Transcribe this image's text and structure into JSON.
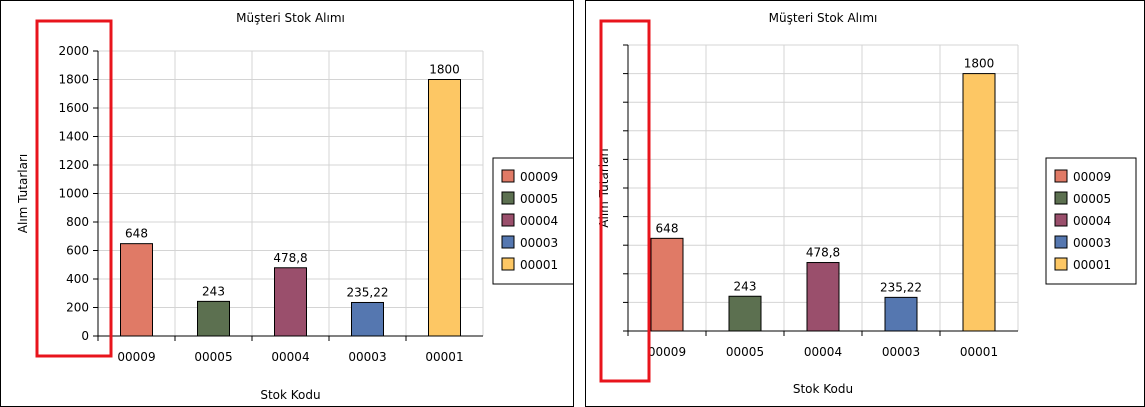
{
  "highlight_color": "#e8141c",
  "chart_data": [
    {
      "type": "bar",
      "title": "Müşteri Stok Alımı",
      "xlabel": "Stok Kodu",
      "ylabel": "Alım Tutarları",
      "categories": [
        "00009",
        "00005",
        "00004",
        "00003",
        "00001"
      ],
      "values": [
        648,
        243,
        478.8,
        235.22,
        1800
      ],
      "value_labels": [
        "648",
        "243",
        "478,8",
        "235,22",
        "1800"
      ],
      "colors": [
        "#e07a66",
        "#5c7050",
        "#9a4f6c",
        "#5577b0",
        "#fdc764"
      ],
      "ylim": [
        0,
        2000
      ],
      "yticks": [
        "0",
        "200",
        "400",
        "600",
        "800",
        "1000",
        "1200",
        "1400",
        "1600",
        "1800",
        "2000"
      ],
      "grid": true,
      "legend": {
        "position": "right",
        "entries": [
          "00009",
          "00005",
          "00004",
          "00003",
          "00001"
        ]
      }
    },
    {
      "type": "bar",
      "title": "Müşteri Stok Alımı",
      "xlabel": "Stok Kodu",
      "ylabel": "Alım Tutarları",
      "categories": [
        "00009",
        "00005",
        "00004",
        "00003",
        "00001"
      ],
      "values": [
        648,
        243,
        478.8,
        235.22,
        1800
      ],
      "value_labels": [
        "648",
        "243",
        "478,8",
        "235,22",
        "1800"
      ],
      "colors": [
        "#e07a66",
        "#5c7050",
        "#9a4f6c",
        "#5577b0",
        "#fdc764"
      ],
      "ylim": [
        0,
        2000
      ],
      "yticks": [],
      "grid": true,
      "legend": {
        "position": "right",
        "entries": [
          "00009",
          "00005",
          "00004",
          "00003",
          "00001"
        ]
      }
    }
  ]
}
